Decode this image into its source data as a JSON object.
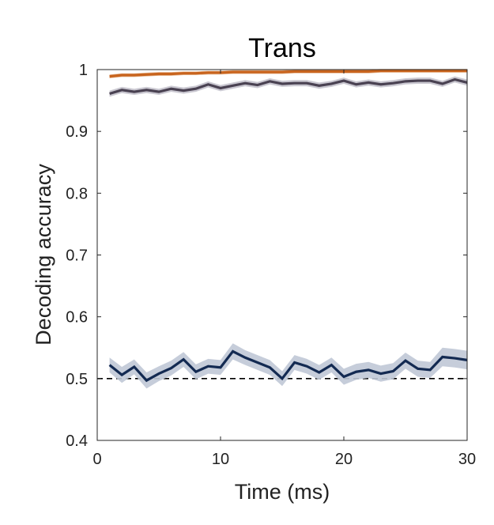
{
  "chart_data": {
    "type": "line",
    "title": "Trans",
    "xlabel": "Time (ms)",
    "ylabel": "Decoding accuracy",
    "xlim": [
      0,
      30
    ],
    "ylim": [
      0.4,
      1
    ],
    "x_ticks": [
      0,
      10,
      20,
      30
    ],
    "y_ticks": [
      0.4,
      0.5,
      0.6,
      0.7,
      0.8,
      0.9,
      1
    ],
    "x_tick_labels": [
      "0",
      "10",
      "20",
      "30"
    ],
    "y_tick_labels": [
      "0.4",
      "0.5",
      "0.6",
      "0.7",
      "0.8",
      "0.9",
      "1"
    ],
    "grid": false,
    "legend": "none",
    "box": "full",
    "reference_line": {
      "y": 0.5,
      "style": "dashed",
      "color": "#000000"
    },
    "x": [
      1,
      2,
      3,
      4,
      5,
      6,
      7,
      8,
      9,
      10,
      11,
      12,
      13,
      14,
      15,
      16,
      17,
      18,
      19,
      20,
      21,
      22,
      23,
      24,
      25,
      26,
      27,
      28,
      29,
      30
    ],
    "series": [
      {
        "color": "#c8641e",
        "band_color": "#e6b48c",
        "values": [
          0.989,
          0.991,
          0.991,
          0.992,
          0.993,
          0.993,
          0.994,
          0.994,
          0.995,
          0.995,
          0.996,
          0.996,
          0.996,
          0.996,
          0.996,
          0.997,
          0.997,
          0.997,
          0.997,
          0.997,
          0.997,
          0.997,
          0.998,
          0.998,
          0.998,
          0.998,
          0.998,
          0.998,
          0.998,
          0.998
        ],
        "error": [
          0.003,
          0.003,
          0.003,
          0.003,
          0.003,
          0.003,
          0.003,
          0.003,
          0.003,
          0.003,
          0.003,
          0.003,
          0.003,
          0.003,
          0.003,
          0.003,
          0.003,
          0.003,
          0.003,
          0.003,
          0.003,
          0.003,
          0.003,
          0.003,
          0.003,
          0.003,
          0.003,
          0.003,
          0.003,
          0.003
        ]
      },
      {
        "color": "#4a4252",
        "band_color": "#c4c2cc",
        "values": [
          0.961,
          0.967,
          0.964,
          0.967,
          0.964,
          0.969,
          0.966,
          0.969,
          0.976,
          0.97,
          0.974,
          0.978,
          0.975,
          0.981,
          0.977,
          0.978,
          0.978,
          0.974,
          0.977,
          0.982,
          0.976,
          0.979,
          0.976,
          0.978,
          0.981,
          0.982,
          0.982,
          0.977,
          0.984,
          0.979
        ],
        "error": [
          0.005,
          0.005,
          0.005,
          0.005,
          0.005,
          0.005,
          0.005,
          0.005,
          0.005,
          0.005,
          0.005,
          0.005,
          0.005,
          0.005,
          0.005,
          0.005,
          0.005,
          0.005,
          0.005,
          0.005,
          0.005,
          0.005,
          0.005,
          0.005,
          0.005,
          0.005,
          0.005,
          0.005,
          0.005,
          0.005
        ]
      },
      {
        "color": "#132a52",
        "band_color": "#c0c8d6",
        "values": [
          0.522,
          0.506,
          0.519,
          0.497,
          0.508,
          0.517,
          0.531,
          0.511,
          0.52,
          0.518,
          0.544,
          0.534,
          0.526,
          0.518,
          0.5,
          0.526,
          0.52,
          0.51,
          0.522,
          0.503,
          0.511,
          0.514,
          0.508,
          0.512,
          0.529,
          0.516,
          0.514,
          0.535,
          0.533,
          0.53
        ],
        "error": [
          0.012,
          0.013,
          0.012,
          0.013,
          0.012,
          0.012,
          0.012,
          0.012,
          0.012,
          0.012,
          0.013,
          0.012,
          0.012,
          0.012,
          0.012,
          0.012,
          0.012,
          0.012,
          0.012,
          0.013,
          0.013,
          0.013,
          0.013,
          0.013,
          0.013,
          0.013,
          0.013,
          0.015,
          0.015,
          0.015
        ]
      }
    ]
  }
}
